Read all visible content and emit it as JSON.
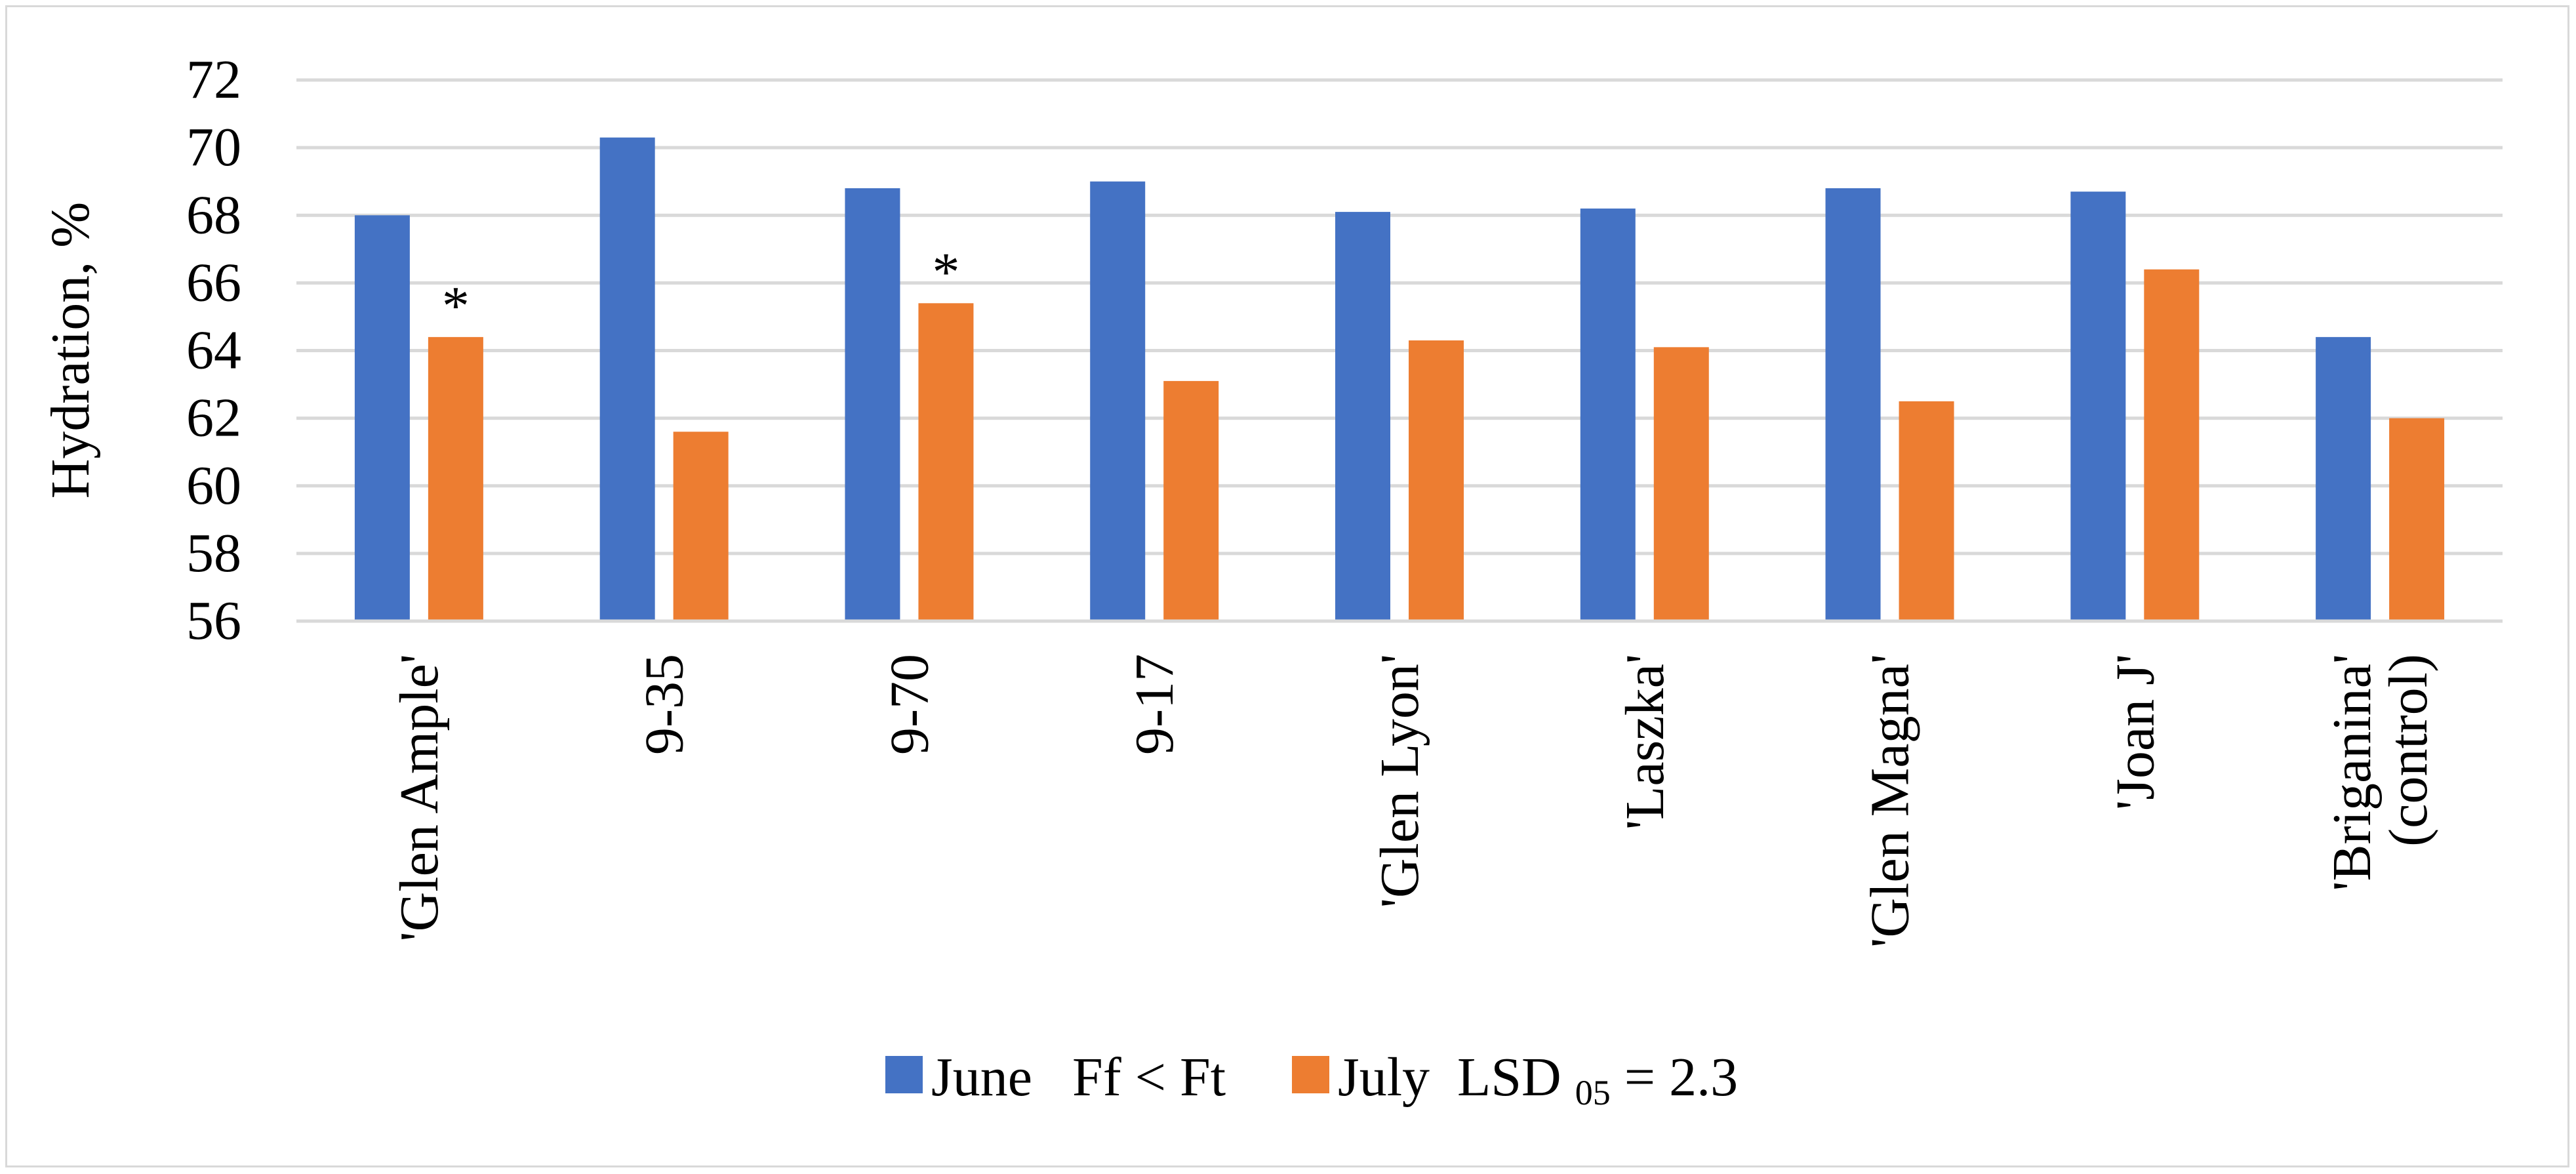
{
  "chart_data": {
    "type": "bar",
    "title": "",
    "ylabel": "Hydration, %",
    "xlabel": "",
    "ylim": [
      56,
      72
    ],
    "yticks": [
      56,
      58,
      60,
      62,
      64,
      66,
      68,
      70,
      72
    ],
    "grid": true,
    "legend_position": "bottom",
    "categories": [
      [
        "'Glen Ample'"
      ],
      [
        "9-35"
      ],
      [
        "9-70"
      ],
      [
        "9-17"
      ],
      [
        "'Glen Lyon'"
      ],
      [
        "'Laszka'"
      ],
      [
        "'Glen Magna'"
      ],
      [
        "'Joan J'"
      ],
      [
        "'Briganina'",
        "(control)"
      ]
    ],
    "series": [
      {
        "name": "June",
        "color": "#4472c4",
        "values": [
          68.0,
          70.3,
          68.8,
          69.0,
          68.1,
          68.2,
          68.8,
          68.7,
          64.4
        ]
      },
      {
        "name": "July",
        "color": "#ed7d31",
        "values": [
          64.4,
          61.6,
          65.4,
          63.1,
          64.3,
          64.1,
          62.5,
          66.4,
          62.0
        ]
      }
    ],
    "annotations": {
      "asterisk": "*",
      "asterisk_on": [
        "July:0",
        "July:2"
      ]
    },
    "legend": {
      "june_label": "June",
      "june_note": "Ff < Ft",
      "july_label": "July",
      "july_note_prefix": "LSD",
      "july_note_sub": "05",
      "july_note_suffix": " = 2.3"
    }
  }
}
